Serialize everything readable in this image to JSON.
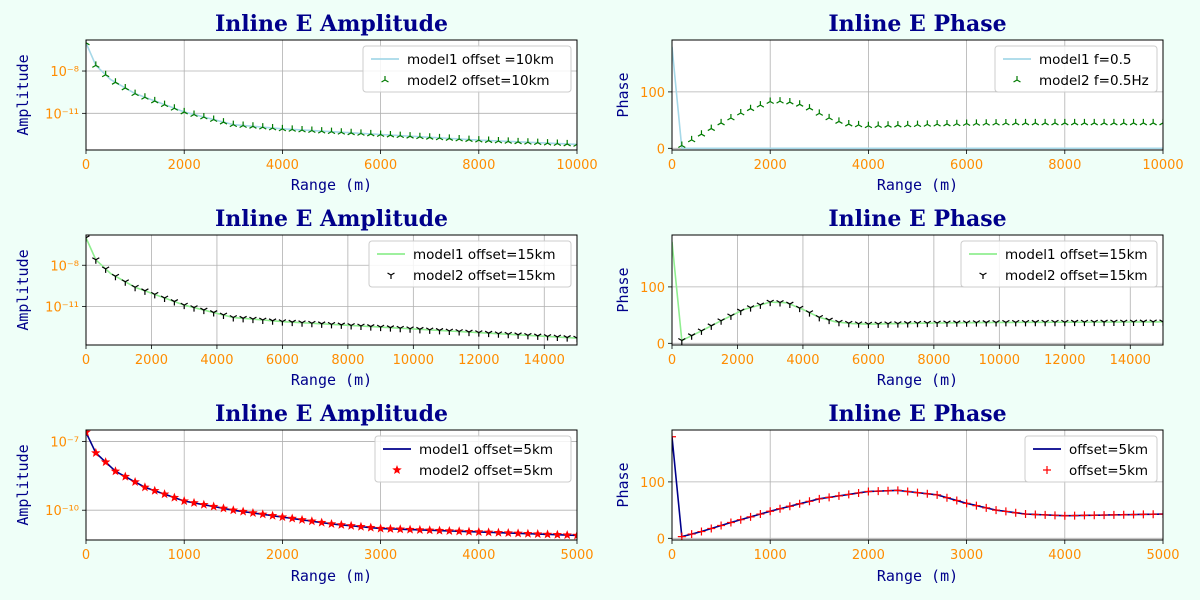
{
  "figure": {
    "background": "#effff8",
    "title_color": "#00008b",
    "label_color": "#00008b",
    "tick_color": "#ff8c00"
  },
  "chart_data": [
    {
      "type": "line",
      "title": "Inline E Amplitude",
      "xlabel": "Range (m)",
      "ylabel": "Amplitude",
      "xlim": [
        0,
        10000
      ],
      "ylog": true,
      "ylim_log10": [
        -13.6,
        -5.8
      ],
      "xticks": [
        0,
        2000,
        4000,
        6000,
        8000,
        10000
      ],
      "yticks": [
        {
          "value": -8,
          "label": "10⁻⁸"
        },
        {
          "value": -11,
          "label": "10⁻¹¹"
        }
      ],
      "grid": true,
      "legend_position": "top-right",
      "series": [
        {
          "name": "model1 offset =10km",
          "style": "line",
          "color": "#a6d8e8",
          "x": [
            0,
            200,
            500,
            1000,
            2000,
            3000,
            4000,
            6000,
            8000,
            10000
          ],
          "y": [
            -6.0,
            -7.6,
            -8.6,
            -9.6,
            -10.9,
            -11.8,
            -12.1,
            -12.5,
            -12.9,
            -13.2
          ]
        },
        {
          "name": "model2 offset=10km",
          "style": "marker",
          "marker": "tri-up",
          "color": "#007a00",
          "x": [
            0,
            200,
            500,
            1000,
            2000,
            3000,
            4000,
            6000,
            8000,
            10000
          ],
          "y": [
            -6.0,
            -7.6,
            -8.6,
            -9.6,
            -10.9,
            -11.8,
            -12.1,
            -12.5,
            -12.9,
            -13.2
          ],
          "step": 200
        }
      ]
    },
    {
      "type": "line",
      "title": "Inline E Phase",
      "xlabel": "Range (m)",
      "ylabel": "Phase",
      "xlim": [
        0,
        10000
      ],
      "ylim": [
        -3,
        192
      ],
      "xticks": [
        0,
        2000,
        4000,
        6000,
        8000,
        10000
      ],
      "yticks": [
        {
          "value": 0,
          "label": "0"
        },
        {
          "value": 100,
          "label": "100"
        }
      ],
      "grid": true,
      "legend_position": "top-right",
      "series": [
        {
          "name": "model1 f=0.5",
          "style": "line",
          "color": "#a6d8e8",
          "x": [
            0,
            200,
            4000,
            10000
          ],
          "y": [
            180,
            0,
            0,
            0
          ]
        },
        {
          "name": "model2 f=0.5Hz",
          "style": "marker",
          "marker": "tri-up",
          "color": "#007a00",
          "x": [
            200,
            600,
            1000,
            1500,
            2000,
            2300,
            2700,
            3000,
            3300,
            3600,
            4000,
            5000,
            6000,
            7000,
            8000,
            10000
          ],
          "y": [
            5,
            25,
            45,
            67,
            83,
            84,
            76,
            62,
            50,
            43,
            40,
            42,
            44,
            45,
            45,
            45
          ],
          "step": 200
        }
      ]
    },
    {
      "type": "line",
      "title": "Inline E Amplitude",
      "xlabel": "Range (m)",
      "ylabel": "Amplitude",
      "xlim": [
        0,
        15000
      ],
      "ylog": true,
      "ylim_log10": [
        -13.8,
        -5.8
      ],
      "xticks": [
        0,
        2000,
        4000,
        6000,
        8000,
        10000,
        12000,
        14000
      ],
      "yticks": [
        {
          "value": -8,
          "label": "10⁻⁸"
        },
        {
          "value": -11,
          "label": "10⁻¹¹"
        }
      ],
      "grid": true,
      "legend_position": "top-right",
      "series": [
        {
          "name": "model1 offset=15km",
          "style": "line",
          "color": "#90ee90",
          "x": [
            0,
            300,
            750,
            1500,
            3000,
            4500,
            6000,
            9000,
            12000,
            15000
          ],
          "y": [
            -6.0,
            -7.6,
            -8.6,
            -9.6,
            -10.9,
            -11.8,
            -12.1,
            -12.5,
            -12.9,
            -13.3
          ]
        },
        {
          "name": "model2 offset=15km",
          "style": "marker",
          "marker": "tri-down",
          "color": "#000000",
          "x": [
            0,
            300,
            750,
            1500,
            3000,
            4500,
            6000,
            9000,
            12000,
            15000
          ],
          "y": [
            -6.0,
            -7.6,
            -8.6,
            -9.6,
            -10.9,
            -11.8,
            -12.1,
            -12.5,
            -12.9,
            -13.3
          ],
          "step": 300
        }
      ]
    },
    {
      "type": "line",
      "title": "Inline E Phase",
      "xlabel": "Range (m)",
      "ylabel": "Phase",
      "xlim": [
        0,
        15000
      ],
      "ylim": [
        -3,
        192
      ],
      "xticks": [
        0,
        2000,
        4000,
        6000,
        8000,
        10000,
        12000,
        14000
      ],
      "yticks": [
        {
          "value": 0,
          "label": "0"
        },
        {
          "value": 100,
          "label": "100"
        }
      ],
      "grid": true,
      "legend_position": "top-right",
      "series": [
        {
          "name": "model1 offset=15km",
          "style": "line",
          "color": "#90ee90",
          "x": [
            0,
            300,
            900,
            1500,
            2200,
            3000,
            3500,
            4000,
            4500,
            5000,
            5500,
            6000,
            8000,
            10000,
            15000
          ],
          "y": [
            180,
            5,
            22,
            40,
            60,
            73,
            72,
            60,
            46,
            38,
            35,
            34,
            36,
            37,
            38
          ]
        },
        {
          "name": "model2 offset=15km",
          "style": "marker",
          "marker": "tri-down",
          "color": "#000000",
          "x": [
            300,
            900,
            1500,
            2200,
            3000,
            3500,
            4000,
            4500,
            5000,
            5500,
            6000,
            8000,
            10000,
            15000
          ],
          "y": [
            5,
            22,
            40,
            60,
            73,
            72,
            60,
            46,
            38,
            35,
            34,
            36,
            37,
            38
          ],
          "step": 300
        }
      ]
    },
    {
      "type": "line",
      "title": "Inline E Amplitude",
      "xlabel": "Range (m)",
      "ylabel": "Amplitude",
      "xlim": [
        0,
        5000
      ],
      "ylog": true,
      "ylim_log10": [
        -11.3,
        -6.5
      ],
      "xticks": [
        0,
        1000,
        2000,
        3000,
        4000,
        5000
      ],
      "yticks": [
        {
          "value": -7,
          "label": "10⁻⁷"
        },
        {
          "value": -10,
          "label": "10⁻¹⁰"
        }
      ],
      "grid": true,
      "legend_position": "top-right",
      "series": [
        {
          "name": "model1 offset=5km",
          "style": "line",
          "color": "#00008b",
          "x": [
            0,
            100,
            300,
            600,
            1000,
            1500,
            2000,
            2500,
            3000,
            4000,
            5000
          ],
          "y": [
            -6.6,
            -7.5,
            -8.3,
            -9.0,
            -9.6,
            -10.0,
            -10.3,
            -10.6,
            -10.8,
            -10.95,
            -11.1
          ]
        },
        {
          "name": "model2 offset=5km",
          "style": "marker",
          "marker": "star",
          "color": "#ff0000",
          "x": [
            0,
            100,
            300,
            600,
            1000,
            1500,
            2000,
            2500,
            3000,
            4000,
            5000
          ],
          "y": [
            -6.6,
            -7.5,
            -8.3,
            -9.0,
            -9.6,
            -10.0,
            -10.3,
            -10.6,
            -10.8,
            -10.95,
            -11.1
          ],
          "step": 100
        }
      ]
    },
    {
      "type": "line",
      "title": "Inline E Phase",
      "xlabel": "Range (m)",
      "ylabel": "Phase",
      "xlim": [
        0,
        5000
      ],
      "ylim": [
        -3,
        192
      ],
      "xticks": [
        0,
        1000,
        2000,
        3000,
        4000,
        5000
      ],
      "yticks": [
        {
          "value": 0,
          "label": "0"
        },
        {
          "value": 100,
          "label": "100"
        }
      ],
      "grid": true,
      "legend_position": "top-right",
      "series": [
        {
          "name": "offset=5km",
          "style": "line",
          "color": "#00008b",
          "x": [
            0,
            100,
            300,
            600,
            1000,
            1500,
            2000,
            2300,
            2700,
            3000,
            3300,
            3600,
            4000,
            5000
          ],
          "y": [
            180,
            3,
            12,
            28,
            48,
            70,
            83,
            85,
            77,
            62,
            50,
            43,
            40,
            43
          ]
        },
        {
          "name": "offset=5km",
          "style": "marker",
          "marker": "plus",
          "color": "#ff0000",
          "x": [
            0,
            100,
            300,
            600,
            1000,
            1500,
            2000,
            2300,
            2700,
            3000,
            3300,
            3600,
            4000,
            5000
          ],
          "y": [
            180,
            3,
            12,
            28,
            48,
            70,
            83,
            85,
            77,
            62,
            50,
            43,
            40,
            43
          ],
          "step": 100
        }
      ]
    }
  ]
}
